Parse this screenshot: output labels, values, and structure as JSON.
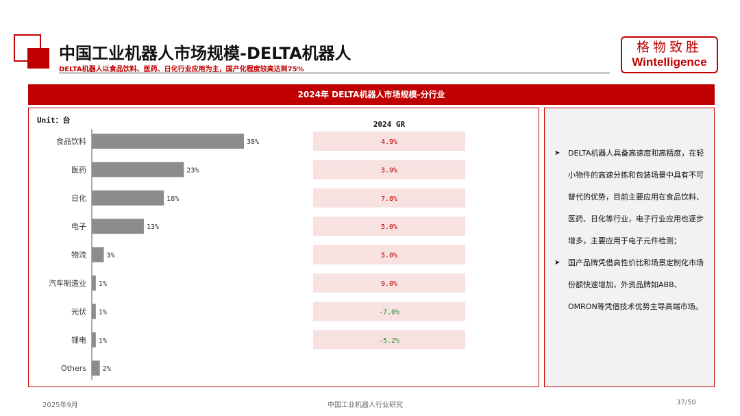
{
  "header": {
    "title": "中国工业机器人市场规模-DELTA机器人",
    "subtitle": "DELTA机器人以食品饮料、医药、日化行业应用为主，国产化程度较高达到75%"
  },
  "logo": {
    "cn": "格物致胜",
    "en": "Wintelligence"
  },
  "banner": {
    "text": "2024年 DELTA机器人市场规模-分行业"
  },
  "chart_data": {
    "type": "bar",
    "orientation": "horizontal",
    "unit_label": "Unit：台",
    "gr_header": "2024 GR",
    "categories": [
      "食品饮料",
      "医药",
      "日化",
      "电子",
      "物流",
      "汽车制造业",
      "光伏",
      "锂电",
      "Others"
    ],
    "values": [
      38,
      23,
      18,
      13,
      3,
      1,
      1,
      1,
      2
    ],
    "value_labels": [
      "38%",
      "23%",
      "18%",
      "13%",
      "3%",
      "1%",
      "1%",
      "1%",
      "2%"
    ],
    "growth": [
      4.9,
      3.9,
      7.8,
      5.0,
      5.0,
      9.0,
      -7.0,
      -5.2,
      null
    ],
    "growth_labels": [
      "4.9%",
      "3.9%",
      "7.8%",
      "5.0%",
      "5.0%",
      "9.0%",
      "-7.0%",
      "-5.2%",
      ""
    ],
    "colors": {
      "bar": "#8c8c8c",
      "gr_bg": "#f7e1e1",
      "positive": "#c00000",
      "negative": "#2e8b2e"
    }
  },
  "notes": [
    "DELTA机器人具备高速度和高精度，在轻小物件的高速分拣和包装场景中具有不可替代的优势，目前主要应用在食品饮料、医药、日化等行业，电子行业应用也逐步增多，主要应用于电子元件检测；",
    "国产品牌凭借高性价比和场景定制化市场份额快速增加，外资品牌如ABB、OMRON等凭借技术优势主导高端市场。"
  ],
  "footer": {
    "date": "2025年9月",
    "center": "中国工业机器人行业研究",
    "page": "37/50"
  }
}
